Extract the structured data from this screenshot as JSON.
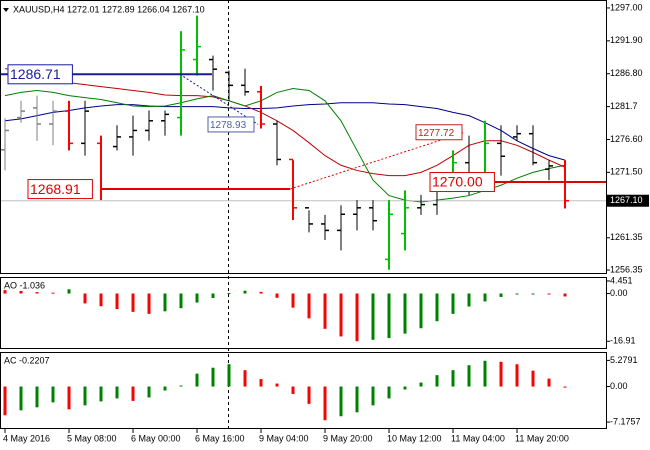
{
  "chart_data": {
    "type": "ohlc",
    "title": "XAUUSD,H4  1272.01 1272.89 1266.04 1267.10",
    "categories": [
      "4 May 2016",
      null,
      null,
      null,
      "5 May 08:00",
      null,
      null,
      null,
      "6 May 00:00",
      null,
      null,
      null,
      "6 May 16:00",
      null,
      null,
      null,
      "9 May 04:00",
      null,
      null,
      null,
      "9 May 20:00",
      null,
      null,
      null,
      "10 May 12:00",
      null,
      null,
      null,
      "11 May 04:00",
      null,
      null,
      null,
      "11 May 20:00",
      null,
      null,
      null
    ],
    "open": [
      1275,
      1280,
      1281.5,
      1279,
      1281,
      1276,
      1276,
      1275.5,
      1277,
      1278,
      1279.5,
      1280,
      1289,
      1289,
      1287,
      1285,
      1284,
      1279,
      1273.5,
      1266,
      1263.5,
      1262.5,
      1265,
      1266,
      1258,
      1262,
      1266,
      1266.5,
      1270,
      1273,
      1271,
      1276,
      1277,
      1277.5,
      1272,
      1272.5
    ],
    "high": [
      1279.9,
      1282.6,
      1283.4,
      1282.6,
      1282.6,
      1282.6,
      1277.2,
      1278.8,
      1280.3,
      1281.1,
      1281.1,
      1293.4,
      1295.8,
      1289.6,
      1287.3,
      1287.6,
      1284.9,
      1279.5,
      1273.4,
      1265.6,
      1264.9,
      1266.4,
      1267.2,
      1267.2,
      1267.2,
      1268.7,
      1268,
      1270.3,
      1274.9,
      1277.2,
      1279.5,
      1278.8,
      1278.8,
      1278.8,
      1273.4,
      1273.4
    ],
    "low": [
      1271.8,
      1279.2,
      1276.4,
      1275.7,
      1274.9,
      1274.1,
      1267.2,
      1274.9,
      1274.1,
      1276.4,
      1277.2,
      1277.2,
      1286.5,
      1284.2,
      1282.6,
      1283.4,
      1278.3,
      1272.6,
      1264.1,
      1262.2,
      1261,
      1259.4,
      1262.5,
      1262.5,
      1256.4,
      1259.4,
      1264.9,
      1264.9,
      1269.5,
      1268,
      1271,
      1271,
      1276.4,
      1272.6,
      1270.3,
      1265.9
    ],
    "close": [
      1278,
      1281,
      1279,
      1281,
      1276,
      1281,
      1268.9,
      1277,
      1278,
      1279.5,
      1280.5,
      1290.5,
      1291,
      1287.5,
      1285,
      1284,
      1279,
      1273.5,
      1266,
      1263.5,
      1262.5,
      1265,
      1266,
      1264,
      1265,
      1266,
      1266.5,
      1269.5,
      1273,
      1271,
      1276,
      1274,
      1277.5,
      1273,
      1272.5,
      1267.1
    ],
    "bar_colors": [
      "#808080",
      "#808080",
      "#808080",
      "#808080",
      "#ff0000",
      "#000000",
      "#ff0000",
      "#000000",
      "#000000",
      "#000000",
      "#000000",
      "#00c000",
      "#00c000",
      "#000000",
      "#000000",
      "#000000",
      "#ff0000",
      "#000000",
      "#ff0000",
      "#000000",
      "#000000",
      "#000000",
      "#000000",
      "#000000",
      "#00c000",
      "#00c000",
      "#000000",
      "#000000",
      "#00c000",
      "#000000",
      "#00c000",
      "#000000",
      "#000000",
      "#000000",
      "#000000",
      "#ff0000"
    ],
    "series": [
      {
        "color": "#00008b",
        "values": [
          1279.5,
          1279.8,
          1280.3,
          1280.8,
          1281.1,
          1281.5,
          1281.8,
          1282.0,
          1282.0,
          1281.8,
          1281.7,
          1281.7,
          1281.7,
          1281.7,
          1281.5,
          1281.4,
          1281.4,
          1281.5,
          1281.8,
          1282.0,
          1282.1,
          1282.3,
          1282.3,
          1282.3,
          1282.1,
          1282.0,
          1281.7,
          1281.4,
          1280.8,
          1280.3,
          1279.2,
          1278.0,
          1276.4,
          1275.2,
          1274.1,
          1273.4
        ]
      },
      {
        "color": "#c00000",
        "values": [
          1287.6,
          1287.0,
          1286.3,
          1285.7,
          1285.4,
          1285.1,
          1284.8,
          1284.5,
          1284.2,
          1283.9,
          1283.5,
          1283.4,
          1283.4,
          1283.2,
          1282.6,
          1281.8,
          1280.8,
          1279.5,
          1278.0,
          1276.1,
          1274.1,
          1272.6,
          1271.8,
          1271.3,
          1271.0,
          1271.0,
          1271.5,
          1272.6,
          1274.1,
          1275.7,
          1276.4,
          1276.4,
          1275.7,
          1274.6,
          1273.4,
          1272.3
        ]
      },
      {
        "color": "#008000",
        "values": [
          1283.4,
          1283.9,
          1284.2,
          1283.9,
          1283.4,
          1283.1,
          1282.8,
          1282.3,
          1281.8,
          1281.7,
          1281.8,
          1282.3,
          1282.9,
          1283.4,
          1282.6,
          1281.8,
          1282.6,
          1283.9,
          1284.5,
          1284.2,
          1282.6,
          1279.5,
          1274.9,
          1270.3,
          1267.9,
          1267.2,
          1266.9,
          1267.2,
          1267.5,
          1267.9,
          1268.7,
          1269.5,
          1270.6,
          1271.5,
          1272.1,
          1272.6
        ]
      }
    ],
    "ylim": [
      1255.89,
      1298.08
    ],
    "yticks": [
      {
        "value": 1297,
        "label": "1297.00"
      },
      {
        "value": 1291.9,
        "label": "1291.90"
      },
      {
        "value": 1286.8,
        "label": "1286.80"
      },
      1281.7,
      {
        "value": 1276.6,
        "label": "1276.60"
      },
      {
        "value": 1271.5,
        "label": "1271.50"
      },
      1261.35,
      1256.35
    ],
    "current_price": {
      "value": 1267.1,
      "label": "1267.10"
    },
    "annotations": [
      {
        "value": 1286.71,
        "label": "1286.71",
        "color": "#1a1aa0"
      },
      {
        "value": 1268.91,
        "label": "1268.91",
        "color": "#e00000"
      },
      {
        "value": 1278.93,
        "label": "1278.93",
        "color": "#5060a0"
      },
      {
        "value": 1277.72,
        "label": "1277.72",
        "color": "#c02020"
      },
      {
        "value": 1270,
        "label": "1270.00",
        "color": "#e00000"
      }
    ],
    "indicators": [
      {
        "title": "AO -1.036",
        "up_color": "#008000",
        "down_color": "#ff0000",
        "values": [
          1.2,
          0.9,
          0.5,
          0.3,
          1.5,
          -3.5,
          -4.5,
          -5.5,
          -6.5,
          -7.2,
          -6.3,
          -5.2,
          -3.2,
          -1.6,
          0.2,
          1.0,
          0.6,
          -1.5,
          -5.0,
          -8.8,
          -12.5,
          -15.2,
          -16.9,
          -16.4,
          -15.8,
          -14.2,
          -12.3,
          -9.8,
          -7.2,
          -4.6,
          -2.8,
          -1.2,
          -0.3,
          -0.2,
          -0.3,
          -1.036
        ],
        "ylim": [
          -19.3,
          5.5
        ],
        "yticks": [
          4.451,
          {
            "value": 0,
            "label": "0.00"
          },
          -16.91
        ]
      },
      {
        "title": "AC -0.2207",
        "up_color": "#008000",
        "down_color": "#ff0000",
        "values": [
          -5.8,
          -4.8,
          -4.2,
          -3.2,
          -4.6,
          -3.8,
          -3.0,
          -2.4,
          -2.9,
          -2.2,
          -0.8,
          0.2,
          2.6,
          3.8,
          4.5,
          3.3,
          1.5,
          0.6,
          -1.5,
          -3.5,
          -6.8,
          -6.0,
          -5.2,
          -3.8,
          -2.4,
          -0.6,
          0.8,
          2.3,
          3.3,
          4.3,
          5.2,
          5.0,
          4.5,
          3.2,
          1.6,
          -0.2207
        ],
        "ylim": [
          -8.37,
          6.77
        ],
        "yticks": [
          5.2791,
          {
            "value": 0,
            "label": "0.00"
          },
          -7.1757
        ]
      }
    ]
  }
}
